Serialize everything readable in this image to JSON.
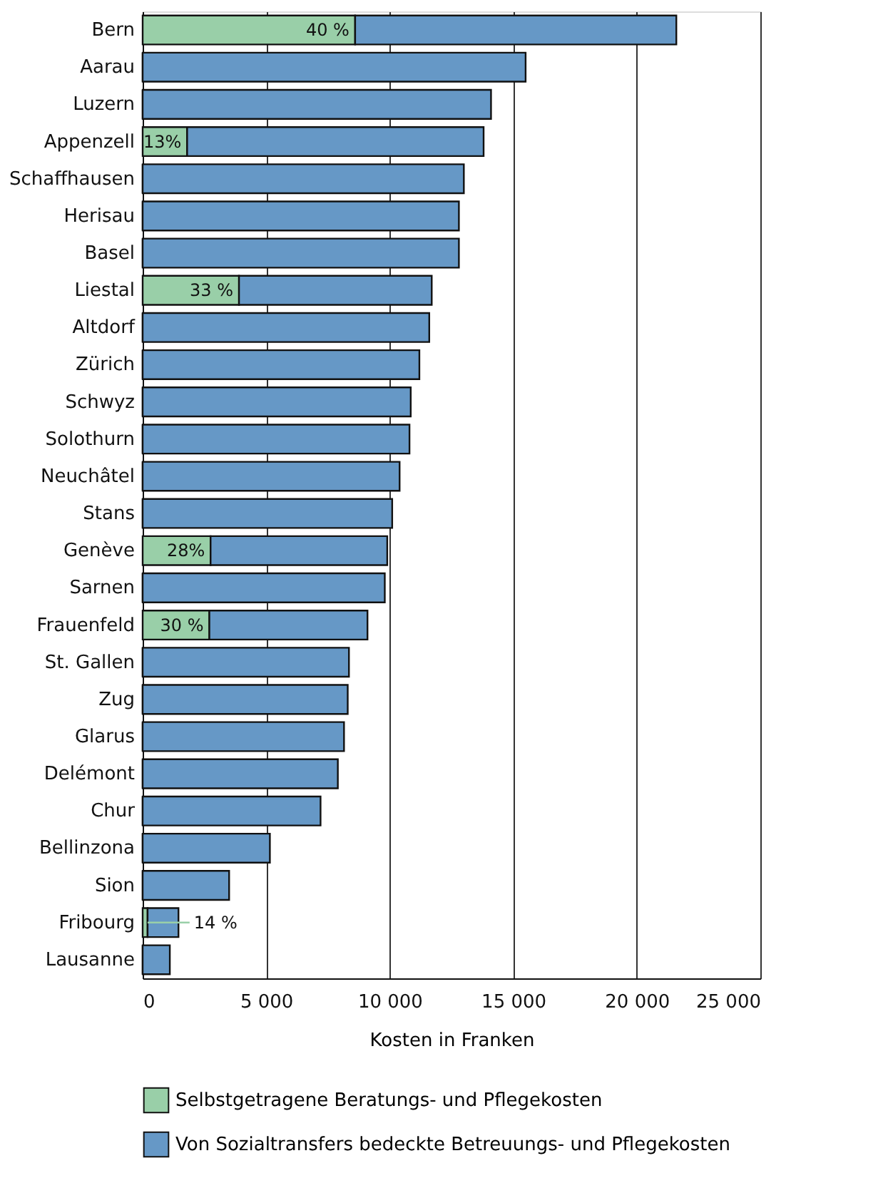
{
  "chart_data": {
    "type": "bar",
    "orientation": "horizontal",
    "stacked": true,
    "categories": [
      "Bern",
      "Aarau",
      "Luzern",
      "Appenzell",
      "Schaffhausen",
      "Herisau",
      "Basel",
      "Liestal",
      "Altdorf",
      "Zürich",
      "Schwyz",
      "Solothurn",
      "Neuchâtel",
      "Stans",
      "Genève",
      "Sarnen",
      "Frauenfeld",
      "St. Gallen",
      "Zug",
      "Glarus",
      "Delémont",
      "Chur",
      "Bellinzona",
      "Sion",
      "Fribourg",
      "Lausanne"
    ],
    "series": [
      {
        "name": "Selbstgetragene Beratungs- und Pflegekosten",
        "color": "#99cfa8",
        "values": [
          8600,
          0,
          0,
          1800,
          0,
          0,
          0,
          3900,
          0,
          0,
          0,
          0,
          0,
          0,
          2750,
          0,
          2700,
          0,
          0,
          0,
          0,
          0,
          0,
          0,
          200,
          0
        ]
      },
      {
        "name": "Von Sozialtransfers bedeckte Betreuungs- und Pflegekosten",
        "color": "#6698c6",
        "values": [
          13000,
          15500,
          14100,
          12000,
          13000,
          12800,
          12800,
          7800,
          11600,
          11200,
          10850,
          10800,
          10400,
          10100,
          7150,
          9800,
          6400,
          8350,
          8300,
          8150,
          7900,
          7200,
          5150,
          3500,
          1250,
          1100
        ]
      }
    ],
    "annotations": [
      {
        "text": "40 %",
        "x": 8600,
        "y": "Bern"
      },
      {
        "text": "13%",
        "x": 1800,
        "y": "Appenzell"
      },
      {
        "text": "33 %",
        "x": 3900,
        "y": "Liestal"
      },
      {
        "text": "28%",
        "x": 2750,
        "y": "Genève"
      },
      {
        "text": "30 %",
        "x": 2700,
        "y": "Frauenfeld"
      },
      {
        "text": "14 %",
        "x": 200,
        "y": "Fribourg"
      }
    ],
    "xlabel": "Kosten in Franken",
    "xlim": [
      0,
      25000
    ],
    "xticks": [
      0,
      {
        "value": 5000,
        "label": "5 000"
      },
      {
        "value": 10000,
        "label": "10 000"
      },
      {
        "value": 15000,
        "label": "15 000"
      },
      {
        "value": 20000,
        "label": "20 000"
      },
      {
        "value": 25000,
        "label": "25 000"
      }
    ],
    "grid": "x",
    "legend": "bottom"
  }
}
